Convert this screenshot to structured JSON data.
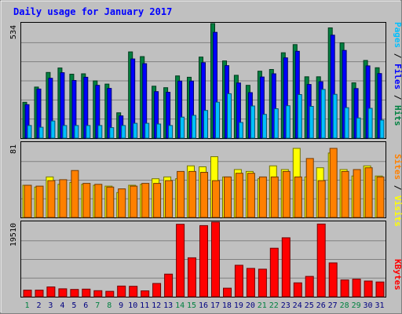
{
  "chart_data": {
    "type": "bar",
    "title": "Daily usage for January 2017",
    "categories": [
      "1",
      "2",
      "3",
      "4",
      "5",
      "6",
      "7",
      "8",
      "9",
      "10",
      "11",
      "12",
      "13",
      "14",
      "15",
      "16",
      "17",
      "18",
      "19",
      "20",
      "21",
      "22",
      "23",
      "24",
      "25",
      "26",
      "27",
      "28",
      "29",
      "30",
      "31"
    ],
    "weekend_days": [
      "1",
      "7",
      "8",
      "14",
      "15",
      "21",
      "22",
      "28",
      "29"
    ],
    "panels": [
      {
        "id": "top",
        "ymax_label": "534",
        "ylim": [
          0,
          534
        ],
        "series": [
          {
            "name": "Hits",
            "color": "#008040",
            "values": [
              167,
              238,
              306,
              327,
              298,
              300,
              267,
              252,
              118,
              402,
              380,
              242,
              235,
              290,
              284,
              378,
              534,
              360,
              293,
              246,
              312,
              320,
              398,
              436,
              286,
              286,
              514,
              444,
              258,
              362,
              328
            ]
          },
          {
            "name": "Files",
            "color": "#0000ff",
            "values": [
              156,
              229,
              279,
              305,
              269,
              284,
              246,
              232,
              104,
              369,
              347,
              217,
              214,
              266,
              266,
              352,
              493,
              338,
              257,
              212,
              285,
              300,
              374,
              405,
              250,
              263,
              480,
              409,
              231,
              337,
              301
            ]
          },
          {
            "name": "Pages",
            "color": "#00c0ff",
            "values": [
              59,
              51,
              80,
              59,
              59,
              59,
              59,
              49,
              59,
              69,
              69,
              66,
              59,
              98,
              106,
              129,
              168,
              207,
              73,
              150,
              111,
              137,
              151,
              203,
              148,
              227,
              204,
              142,
              94,
              139,
              84
            ]
          }
        ]
      },
      {
        "id": "middle",
        "ymax_label": "81",
        "ylim": [
          0,
          81
        ],
        "series": [
          {
            "name": "Visits",
            "color": "#ffff00",
            "values": [
              35,
              33,
              44,
              36,
              38,
              36,
              35,
              34,
              27,
              35,
              36,
              42,
              44,
              42,
              56,
              55,
              66,
              44,
              52,
              50,
              42,
              56,
              52,
              75,
              44,
              54,
              70,
              52,
              45,
              56,
              45
            ]
          },
          {
            "name": "Sites",
            "color": "#ff8000",
            "values": [
              35,
              34,
              40,
              41,
              51,
              37,
              36,
              33,
              31,
              34,
              37,
              37,
              40,
              50,
              50,
              49,
              40,
              44,
              48,
              48,
              44,
              44,
              50,
              44,
              64,
              40,
              75,
              50,
              52,
              54,
              44
            ]
          }
        ]
      },
      {
        "id": "bottom",
        "ymax_label": "19510",
        "ylim": [
          0,
          19510
        ],
        "series": [
          {
            "name": "KBytes",
            "color": "#ff0000",
            "values": [
              1735,
              1735,
              2570,
              2064,
              1906,
              1996,
              1573,
              1415,
              2799,
              2729,
              1535,
              3462,
              5909,
              18952,
              10182,
              18615,
              19510,
              2237,
              8243,
              7411,
              7213,
              12696,
              15414,
              3640,
              5311,
              19017,
              8842,
              4389,
              4602,
              4114,
              3855
            ]
          }
        ]
      }
    ],
    "right_labels": {
      "top": [
        {
          "text": "Pages",
          "color": "#00c0ff"
        },
        {
          "text": " / ",
          "color": "#000000"
        },
        {
          "text": "Files",
          "color": "#0000ff"
        },
        {
          "text": " / ",
          "color": "#000000"
        },
        {
          "text": "Hits",
          "color": "#008040"
        }
      ],
      "middle": [
        {
          "text": "Sites",
          "color": "#ff8000"
        },
        {
          "text": " / ",
          "color": "#000000"
        },
        {
          "text": "Visits",
          "color": "#ffff00"
        }
      ],
      "bottom": [
        {
          "text": "KBytes",
          "color": "#ff0000"
        }
      ]
    },
    "colors": {
      "background": "#c0c0c0",
      "title": "#0000ff",
      "weekday_label": "#000080",
      "weekend_label": "#008040",
      "gridline": "#808080"
    }
  }
}
